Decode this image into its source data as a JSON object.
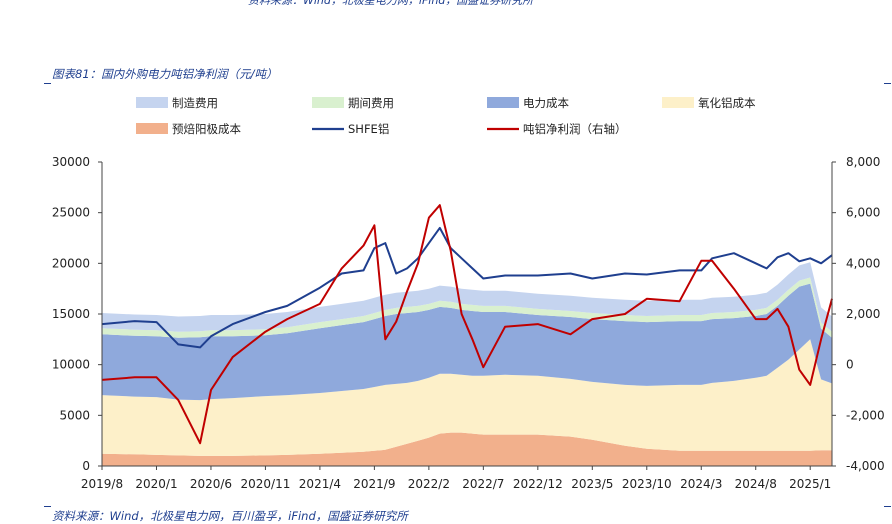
{
  "header": {
    "top_source": "资料来源：Wind，北极星电力网，iFind，国盛证券研究所",
    "figure_title": "图表81：国内外购电力吨铝净利润（元/吨）",
    "bottom_source": "资料来源：Wind，北极星电力网，百川盈孚，iFind，国盛证券研究所"
  },
  "colors": {
    "manufacturing": "#c5d4ef",
    "period": "#d9f0cf",
    "power": "#8fa9dc",
    "alumina": "#fdf0c9",
    "anode": "#f2b08c",
    "shfe": "#1f3f8f",
    "profit": "#c00000",
    "text_blue": "#1f3f8f"
  },
  "chart_data": {
    "type": "area",
    "title": "",
    "x_ticks": [
      "2019/8",
      "2020/1",
      "2020/6",
      "2020/11",
      "2021/4",
      "2021/9",
      "2022/2",
      "2022/7",
      "2022/12",
      "2023/5",
      "2023/10",
      "2024/3",
      "2024/8",
      "2025/1"
    ],
    "x_range": [
      "2019/8",
      "2025/3"
    ],
    "y_left": {
      "range": [
        0,
        30000
      ],
      "ticks": [
        "0",
        "5000",
        "10000",
        "15000",
        "20000",
        "25000",
        "30000"
      ]
    },
    "y_right": {
      "range": [
        -4000,
        8000
      ],
      "ticks": [
        "-4,000",
        "-2,000",
        "0",
        "2,000",
        "4,000",
        "6,000",
        "8,000"
      ]
    },
    "legend_position": "top",
    "legend": [
      {
        "key": "manufacturing",
        "label": "制造费用",
        "kind": "area"
      },
      {
        "key": "period",
        "label": "期间费用",
        "kind": "area"
      },
      {
        "key": "power",
        "label": "电力成本",
        "kind": "area"
      },
      {
        "key": "alumina",
        "label": "氧化铝成本",
        "kind": "area"
      },
      {
        "key": "anode",
        "label": "预焙阳极成本",
        "kind": "area"
      },
      {
        "key": "shfe",
        "label": "SHFE铝",
        "kind": "line"
      },
      {
        "key": "profit",
        "label": "吨铝净利润（右轴）",
        "kind": "line"
      }
    ],
    "dates": [
      "2019/8",
      "2019/11",
      "2020/1",
      "2020/3",
      "2020/5",
      "2020/6",
      "2020/8",
      "2020/11",
      "2021/1",
      "2021/4",
      "2021/6",
      "2021/8",
      "2021/9",
      "2021/10",
      "2021/11",
      "2021/12",
      "2022/1",
      "2022/2",
      "2022/3",
      "2022/4",
      "2022/5",
      "2022/6",
      "2022/7",
      "2022/9",
      "2022/12",
      "2023/3",
      "2023/5",
      "2023/8",
      "2023/10",
      "2024/1",
      "2024/3",
      "2024/4",
      "2024/6",
      "2024/8",
      "2024/9",
      "2024/10",
      "2024/11",
      "2024/12",
      "2025/1",
      "2025/2",
      "2025/3"
    ],
    "series": [
      {
        "key": "anode",
        "name": "预焙阳极成本",
        "stack": true,
        "values": [
          1200,
          1150,
          1100,
          1050,
          1000,
          1000,
          1000,
          1050,
          1100,
          1200,
          1300,
          1400,
          1500,
          1600,
          1900,
          2200,
          2500,
          2800,
          3200,
          3300,
          3300,
          3200,
          3100,
          3100,
          3100,
          2900,
          2600,
          2000,
          1700,
          1500,
          1500,
          1500,
          1500,
          1500,
          1500,
          1500,
          1500,
          1500,
          1500,
          1550,
          1550
        ]
      },
      {
        "key": "alumina",
        "name": "氧化铝成本",
        "stack": true,
        "values": [
          5800,
          5700,
          5700,
          5500,
          5500,
          5600,
          5700,
          5850,
          5900,
          6000,
          6100,
          6200,
          6300,
          6400,
          6200,
          6000,
          5900,
          5900,
          5900,
          5800,
          5700,
          5700,
          5800,
          5900,
          5800,
          5700,
          5700,
          6000,
          6200,
          6500,
          6500,
          6700,
          6900,
          7200,
          7400,
          8200,
          9000,
          10000,
          11000,
          7000,
          6600
        ]
      },
      {
        "key": "power",
        "name": "电力成本",
        "stack": true,
        "values": [
          6000,
          6000,
          6000,
          6100,
          6200,
          6200,
          6100,
          6000,
          6100,
          6400,
          6500,
          6600,
          6700,
          6800,
          6900,
          6900,
          6800,
          6700,
          6600,
          6500,
          6400,
          6400,
          6300,
          6200,
          6000,
          6100,
          6200,
          6300,
          6300,
          6300,
          6300,
          6300,
          6200,
          6100,
          6100,
          6100,
          6300,
          6200,
          5500,
          5000,
          4500
        ]
      },
      {
        "key": "period",
        "name": "期间费用",
        "stack": true,
        "values": [
          600,
          600,
          600,
          600,
          600,
          600,
          600,
          600,
          600,
          600,
          600,
          600,
          600,
          600,
          600,
          600,
          600,
          600,
          600,
          600,
          600,
          600,
          600,
          600,
          600,
          600,
          600,
          600,
          600,
          600,
          600,
          600,
          600,
          600,
          600,
          600,
          600,
          600,
          600,
          600,
          600
        ]
      },
      {
        "key": "manufacturing",
        "name": "制造费用",
        "stack": true,
        "values": [
          1500,
          1500,
          1500,
          1500,
          1500,
          1500,
          1500,
          1500,
          1500,
          1500,
          1500,
          1500,
          1500,
          1500,
          1500,
          1500,
          1500,
          1500,
          1500,
          1500,
          1500,
          1500,
          1500,
          1500,
          1500,
          1500,
          1500,
          1500,
          1500,
          1500,
          1500,
          1500,
          1500,
          1500,
          1500,
          1500,
          1500,
          1500,
          1500,
          1500,
          1500
        ]
      },
      {
        "key": "shfe",
        "name": "SHFE铝",
        "axis": "left",
        "values": [
          14000,
          14300,
          14200,
          12000,
          11700,
          12800,
          14000,
          15200,
          15800,
          17600,
          19000,
          19300,
          21500,
          22000,
          19000,
          19500,
          20500,
          22000,
          23500,
          21500,
          20500,
          19500,
          18500,
          18800,
          18800,
          19000,
          18500,
          19000,
          18900,
          19300,
          19300,
          20500,
          21000,
          20000,
          19500,
          20600,
          21000,
          20200,
          20500,
          20000,
          20800
        ]
      },
      {
        "key": "profit",
        "name": "吨铝净利润（右轴）",
        "axis": "right",
        "values": [
          -600,
          -500,
          -500,
          -1400,
          -3100,
          -1000,
          300,
          1300,
          1800,
          2400,
          3800,
          4700,
          5500,
          1000,
          1700,
          2900,
          4000,
          5800,
          6300,
          4500,
          2000,
          1000,
          -100,
          1500,
          1600,
          1200,
          1800,
          2000,
          2600,
          2500,
          4100,
          4100,
          3000,
          1800,
          1800,
          2200,
          1500,
          -200,
          -800,
          1000,
          2600
        ]
      }
    ]
  }
}
